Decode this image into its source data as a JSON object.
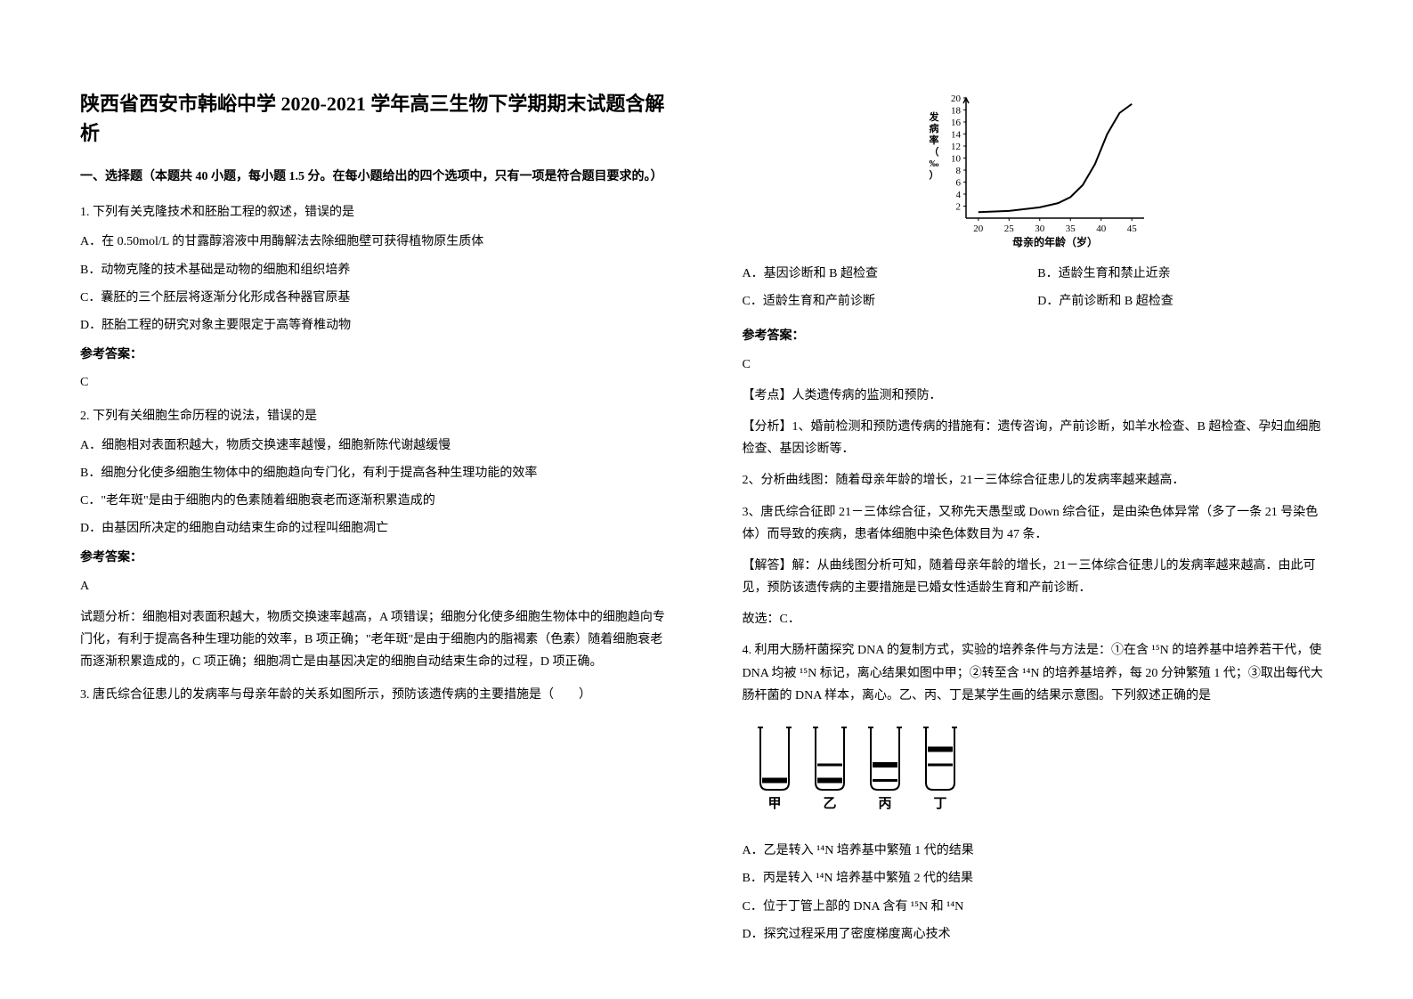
{
  "title": "陕西省西安市韩峪中学 2020-2021 学年高三生物下学期期末试题含解析",
  "section1_header": "一、选择题（本题共 40 小题，每小题 1.5 分。在每小题给出的四个选项中，只有一项是符合题目要求的。）",
  "q1": {
    "text": "1. 下列有关克隆技术和胚胎工程的叙述，错误的是",
    "optA": "A．在 0.50mol/L 的甘露醇溶液中用酶解法去除细胞壁可获得植物原生质体",
    "optB": "B．动物克隆的技术基础是动物的细胞和组织培养",
    "optC": "C．囊胚的三个胚层将逐渐分化形成各种器官原基",
    "optD": "D．胚胎工程的研究对象主要限定于高等脊椎动物",
    "answer_label": "参考答案：",
    "answer": "C"
  },
  "q2": {
    "text": "2. 下列有关细胞生命历程的说法，错误的是",
    "optA": "A．细胞相对表面积越大，物质交换速率越慢，细胞新陈代谢越缓慢",
    "optB": "B．细胞分化使多细胞生物体中的细胞趋向专门化，有利于提高各种生理功能的效率",
    "optC": "C．\"老年斑\"是由于细胞内的色素随着细胞衰老而逐渐积累造成的",
    "optD": "D．由基因所决定的细胞自动结束生命的过程叫细胞凋亡",
    "answer_label": "参考答案：",
    "answer": "A",
    "analysis": "试题分析：细胞相对表面积越大，物质交换速率越高，A 项错误；细胞分化使多细胞生物体中的细胞趋向专门化，有利于提高各种生理功能的效率，B 项正确；\"老年斑\"是由于细胞内的脂褐素（色素）随着细胞衰老而逐渐积累造成的，C 项正确；细胞凋亡是由基因决定的细胞自动结束生命的过程，D 项正确。"
  },
  "q3": {
    "text": "3. 唐氏综合征患儿的发病率与母亲年龄的关系如图所示，预防该遗传病的主要措施是（　　）",
    "optA": "A．基因诊断和 B 超检查",
    "optB": "B．适龄生育和禁止近亲",
    "optC": "C．适龄生育和产前诊断",
    "optD": "D．产前诊断和 B 超检查",
    "answer_label": "参考答案：",
    "answer": "C",
    "point": "【考点】人类遗传病的监测和预防．",
    "analysis1": "【分析】1、婚前检测和预防遗传病的措施有：遗传咨询，产前诊断，如羊水检查、B 超检查、孕妇血细胞检查、基因诊断等．",
    "analysis2": "2、分析曲线图：随着母亲年龄的增长，21－三体综合征患儿的发病率越来越高．",
    "analysis3": "3、唐氏综合征即 21－三体综合征，又称先天愚型或 Down 综合征，是由染色体异常（多了一条 21 号染色体）而导致的疾病，患者体细胞中染色体数目为 47 条．",
    "solution": "【解答】解：从曲线图分析可知，随着母亲年龄的增长，21－三体综合征患儿的发病率越来越高．由此可见，预防该遗传病的主要措施是已婚女性适龄生育和产前诊断．",
    "conclusion": "故选：C．"
  },
  "q4": {
    "text": "4. 利用大肠杆菌探究 DNA 的复制方式，实验的培养条件与方法是：①在含 ¹⁵N 的培养基中培养若干代，使 DNA 均被 ¹⁵N 标记，离心结果如图中甲；②转至含 ¹⁴N 的培养基培养，每 20 分钟繁殖 1 代；③取出每代大肠杆菌的 DNA 样本，离心。乙、丙、丁是某学生画的结果示意图。下列叙述正确的是",
    "optA": "A．乙是转入 ¹⁴N 培养基中繁殖 1 代的结果",
    "optB": "B．丙是转入 ¹⁴N 培养基中繁殖 2 代的结果",
    "optC": "C．位于丁管上部的 DNA 含有 ¹⁵N 和 ¹⁴N",
    "optD": "D．探究过程采用了密度梯度离心技术"
  },
  "chart": {
    "ylabel": "发病率（‰）",
    "xlabel": "母亲的年龄（岁）",
    "yticks": [
      2,
      4,
      6,
      8,
      10,
      12,
      14,
      16,
      18,
      20
    ],
    "xticks": [
      20,
      25,
      30,
      35,
      40,
      45
    ],
    "ylim": [
      0,
      20
    ],
    "xlim": [
      18,
      47
    ],
    "curve_points": [
      [
        20,
        1
      ],
      [
        25,
        1.2
      ],
      [
        30,
        1.8
      ],
      [
        33,
        2.5
      ],
      [
        35,
        3.5
      ],
      [
        37,
        5.5
      ],
      [
        39,
        9
      ],
      [
        41,
        14
      ],
      [
        43,
        17.5
      ],
      [
        45,
        19
      ]
    ],
    "line_color": "#000000",
    "axis_color": "#000000",
    "background": "#ffffff"
  },
  "tubes": {
    "labels": [
      "甲",
      "乙",
      "丙",
      "丁"
    ],
    "bands": [
      [
        {
          "y": 0.85,
          "thick": true
        }
      ],
      [
        {
          "y": 0.6,
          "thick": false
        },
        {
          "y": 0.85,
          "thick": true
        }
      ],
      [
        {
          "y": 0.6,
          "thick": true
        },
        {
          "y": 0.85,
          "thick": false
        }
      ],
      [
        {
          "y": 0.35,
          "thick": true
        },
        {
          "y": 0.6,
          "thick": false
        }
      ]
    ],
    "stroke": "#000000"
  }
}
